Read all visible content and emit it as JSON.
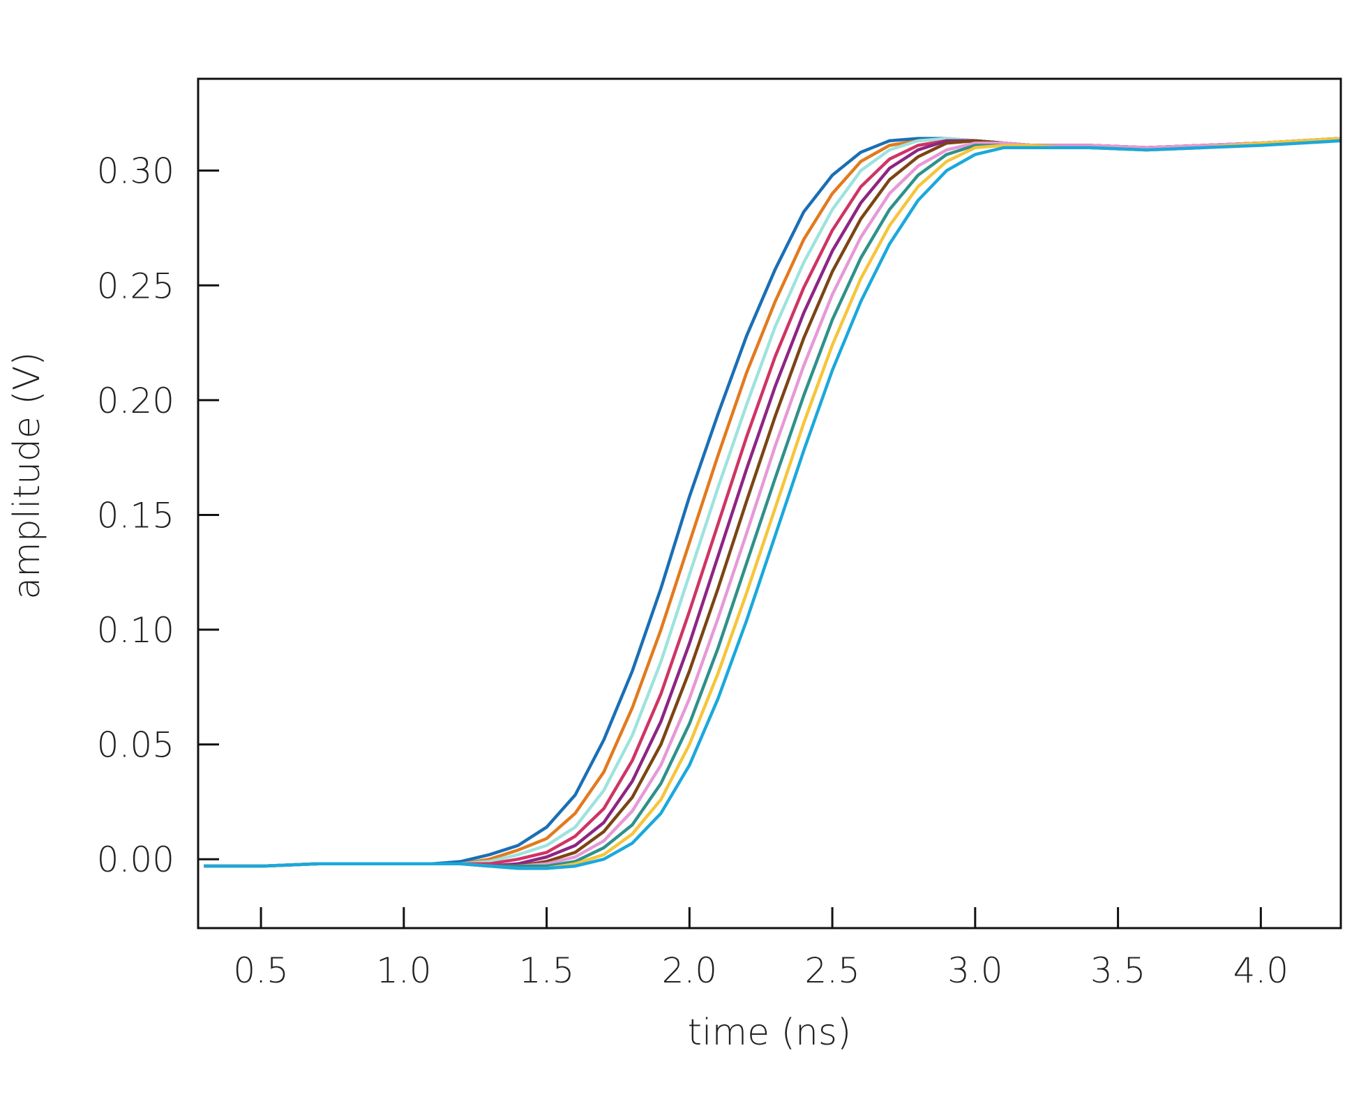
{
  "chart_data": {
    "type": "line",
    "title": "",
    "xlabel": "time (ns)",
    "ylabel": "amplitude (V)",
    "xlim": [
      0.28,
      4.28
    ],
    "ylim": [
      -0.03,
      0.34
    ],
    "xticks": [
      0.5,
      1.0,
      1.5,
      2.0,
      2.5,
      3.0,
      3.5,
      4.0
    ],
    "xtick_labels": [
      "0.5",
      "1.0",
      "1.5",
      "2.0",
      "2.5",
      "3.0",
      "3.5",
      "4.0"
    ],
    "yticks": [
      0.0,
      0.05,
      0.1,
      0.15,
      0.2,
      0.25,
      0.3
    ],
    "ytick_labels": [
      "0.00",
      "0.05",
      "0.10",
      "0.15",
      "0.20",
      "0.25",
      "0.30"
    ],
    "grid": false,
    "legend": "none",
    "series_common": {
      "x": [
        0.3,
        0.5,
        0.7,
        0.9,
        1.1,
        1.2,
        1.3,
        1.4,
        1.5,
        1.6,
        1.7,
        1.8,
        1.9,
        2.0,
        2.1,
        2.2,
        2.3,
        2.4,
        2.5,
        2.6,
        2.7,
        2.8,
        2.9,
        3.0,
        3.1,
        3.2,
        3.3,
        3.4,
        3.6,
        3.8,
        4.0,
        4.28
      ]
    },
    "series": [
      {
        "color": "#1a6fb5",
        "y": [
          -0.003,
          -0.003,
          -0.002,
          -0.002,
          -0.002,
          -0.001,
          0.002,
          0.006,
          0.014,
          0.028,
          0.052,
          0.082,
          0.118,
          0.158,
          0.194,
          0.228,
          0.257,
          0.282,
          0.298,
          0.308,
          0.313,
          0.314,
          0.314,
          0.313,
          0.311,
          0.311,
          0.311,
          0.311,
          0.31,
          0.311,
          0.312,
          0.314
        ]
      },
      {
        "color": "#e27a1e",
        "y": [
          -0.003,
          -0.003,
          -0.002,
          -0.002,
          -0.002,
          -0.002,
          0.0,
          0.004,
          0.009,
          0.02,
          0.038,
          0.066,
          0.1,
          0.138,
          0.176,
          0.212,
          0.243,
          0.27,
          0.29,
          0.304,
          0.311,
          0.313,
          0.314,
          0.313,
          0.312,
          0.311,
          0.311,
          0.311,
          0.31,
          0.311,
          0.312,
          0.314
        ]
      },
      {
        "color": "#9de3df",
        "y": [
          -0.003,
          -0.003,
          -0.002,
          -0.002,
          -0.002,
          -0.002,
          -0.001,
          0.002,
          0.006,
          0.014,
          0.03,
          0.054,
          0.086,
          0.124,
          0.162,
          0.198,
          0.232,
          0.26,
          0.283,
          0.3,
          0.309,
          0.313,
          0.314,
          0.313,
          0.312,
          0.311,
          0.311,
          0.311,
          0.31,
          0.311,
          0.312,
          0.314
        ]
      },
      {
        "color": "#cf3465",
        "y": [
          -0.003,
          -0.003,
          -0.002,
          -0.002,
          -0.002,
          -0.002,
          -0.002,
          0.0,
          0.003,
          0.01,
          0.022,
          0.043,
          0.072,
          0.108,
          0.146,
          0.184,
          0.219,
          0.249,
          0.274,
          0.293,
          0.305,
          0.311,
          0.313,
          0.313,
          0.312,
          0.311,
          0.311,
          0.311,
          0.31,
          0.311,
          0.312,
          0.314
        ]
      },
      {
        "color": "#8e2584",
        "y": [
          -0.003,
          -0.003,
          -0.002,
          -0.002,
          -0.002,
          -0.002,
          -0.003,
          -0.002,
          0.001,
          0.006,
          0.016,
          0.034,
          0.06,
          0.094,
          0.132,
          0.17,
          0.206,
          0.238,
          0.265,
          0.286,
          0.301,
          0.309,
          0.313,
          0.313,
          0.312,
          0.311,
          0.311,
          0.311,
          0.31,
          0.311,
          0.312,
          0.314
        ]
      },
      {
        "color": "#7b4514",
        "y": [
          -0.003,
          -0.003,
          -0.002,
          -0.002,
          -0.002,
          -0.002,
          -0.003,
          -0.003,
          -0.001,
          0.003,
          0.012,
          0.027,
          0.05,
          0.082,
          0.118,
          0.156,
          0.193,
          0.227,
          0.256,
          0.279,
          0.296,
          0.306,
          0.312,
          0.313,
          0.312,
          0.311,
          0.311,
          0.311,
          0.31,
          0.311,
          0.312,
          0.314
        ]
      },
      {
        "color": "#e699d6",
        "y": [
          -0.003,
          -0.003,
          -0.002,
          -0.002,
          -0.002,
          -0.002,
          -0.003,
          -0.003,
          -0.002,
          0.001,
          0.008,
          0.021,
          0.041,
          0.07,
          0.105,
          0.142,
          0.18,
          0.215,
          0.246,
          0.271,
          0.29,
          0.302,
          0.309,
          0.312,
          0.312,
          0.311,
          0.311,
          0.311,
          0.31,
          0.311,
          0.312,
          0.314
        ]
      },
      {
        "color": "#2e918a",
        "y": [
          -0.003,
          -0.003,
          -0.002,
          -0.002,
          -0.002,
          -0.002,
          -0.003,
          -0.003,
          -0.003,
          -0.001,
          0.005,
          0.015,
          0.033,
          0.059,
          0.092,
          0.129,
          0.166,
          0.202,
          0.235,
          0.262,
          0.283,
          0.298,
          0.307,
          0.311,
          0.311,
          0.311,
          0.31,
          0.31,
          0.309,
          0.31,
          0.312,
          0.314
        ]
      },
      {
        "color": "#f6c53a",
        "y": [
          -0.003,
          -0.003,
          -0.002,
          -0.002,
          -0.002,
          -0.002,
          -0.003,
          -0.004,
          -0.004,
          -0.002,
          0.002,
          0.011,
          0.026,
          0.05,
          0.081,
          0.116,
          0.153,
          0.19,
          0.224,
          0.253,
          0.276,
          0.293,
          0.304,
          0.31,
          0.311,
          0.311,
          0.31,
          0.31,
          0.309,
          0.31,
          0.312,
          0.314
        ]
      },
      {
        "color": "#1ba8db",
        "y": [
          -0.003,
          -0.003,
          -0.002,
          -0.002,
          -0.002,
          -0.002,
          -0.003,
          -0.004,
          -0.004,
          -0.003,
          0.0,
          0.007,
          0.02,
          0.041,
          0.07,
          0.104,
          0.141,
          0.178,
          0.213,
          0.243,
          0.268,
          0.287,
          0.3,
          0.307,
          0.31,
          0.31,
          0.31,
          0.31,
          0.309,
          0.31,
          0.311,
          0.313
        ]
      }
    ]
  }
}
